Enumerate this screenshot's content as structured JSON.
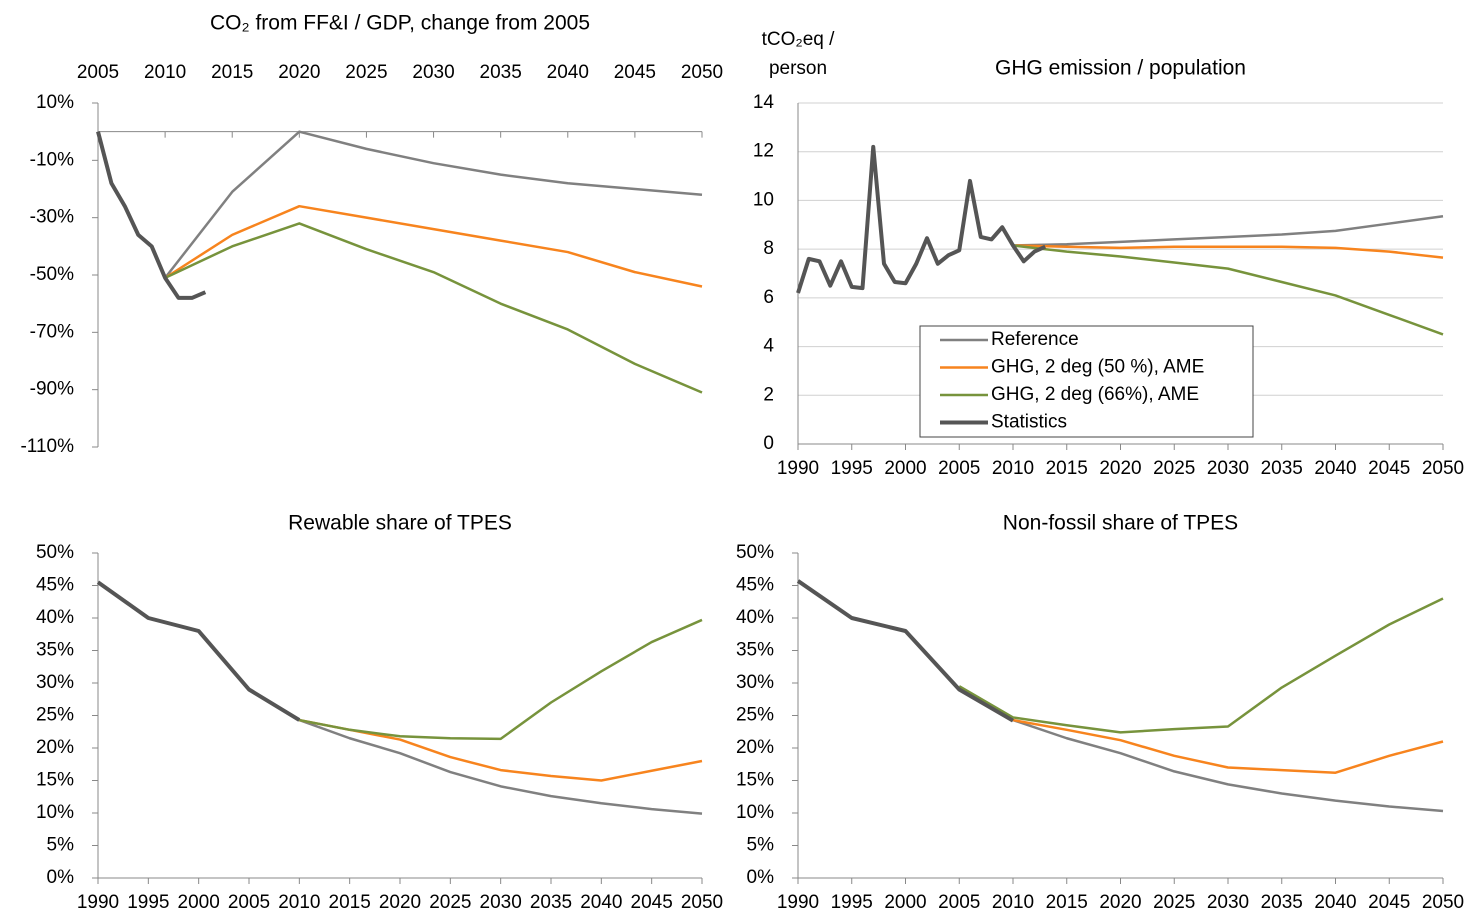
{
  "chart_data": [
    {
      "type": "line",
      "title": "CO₂ from FF&I / GDP, change from 2005",
      "x_axis_position": "top",
      "grid": false,
      "xlim": [
        2005,
        2050
      ],
      "xticks": [
        2005,
        2010,
        2015,
        2020,
        2025,
        2030,
        2035,
        2040,
        2045,
        2050
      ],
      "ylim": [
        -110,
        10
      ],
      "yticks": [
        {
          "value": -110,
          "label": "-110%"
        },
        {
          "value": -90,
          "label": "-90%"
        },
        {
          "value": -70,
          "label": "-70%"
        },
        {
          "value": -50,
          "label": "-50%"
        },
        {
          "value": -30,
          "label": "-30%"
        },
        {
          "value": -10,
          "label": "-10%"
        },
        {
          "value": 10,
          "label": "10%"
        }
      ],
      "series": [
        {
          "color": "#808080",
          "x": [
            2010,
            2015,
            2020,
            2025,
            2030,
            2035,
            2040,
            2045,
            2050
          ],
          "values": [
            -51,
            -21,
            0,
            -6,
            -11,
            -15,
            -18,
            -20,
            -22
          ]
        },
        {
          "color": "#f7841e",
          "x": [
            2010,
            2015,
            2020,
            2025,
            2030,
            2035,
            2040,
            2045,
            2050
          ],
          "values": [
            -51,
            -36,
            -26,
            -30,
            -34,
            -38,
            -42,
            -49,
            -54
          ]
        },
        {
          "color": "#77933c",
          "x": [
            2010,
            2015,
            2020,
            2025,
            2030,
            2035,
            2040,
            2045,
            2050
          ],
          "values": [
            -51,
            -40,
            -32,
            -41,
            -49,
            -60,
            -69,
            -81,
            -91
          ]
        },
        {
          "color": "#555555",
          "width": 4,
          "x": [
            2005,
            2006,
            2007,
            2008,
            2009,
            2010,
            2011,
            2012,
            2013
          ],
          "values": [
            0,
            -18,
            -26,
            -36,
            -40,
            -51,
            -58,
            -58,
            -56
          ]
        }
      ]
    },
    {
      "type": "line",
      "title": "GHG emission / population",
      "y_label": [
        "tCO₂eq /",
        "person"
      ],
      "grid": true,
      "legend": "center",
      "xlim": [
        1990,
        2050
      ],
      "xticks": [
        1990,
        1995,
        2000,
        2005,
        2010,
        2015,
        2020,
        2025,
        2030,
        2035,
        2040,
        2045,
        2050
      ],
      "ylim": [
        0,
        14
      ],
      "yticks": [
        0,
        2,
        4,
        6,
        8,
        10,
        12,
        14
      ],
      "series": [
        {
          "name": "Reference",
          "color": "#808080",
          "x": [
            2010,
            2015,
            2020,
            2025,
            2030,
            2035,
            2040,
            2045,
            2050
          ],
          "values": [
            8.15,
            8.2,
            8.3,
            8.4,
            8.5,
            8.6,
            8.75,
            9.05,
            9.35
          ]
        },
        {
          "name": "GHG, 2 deg (50 %), AME",
          "color": "#f7841e",
          "x": [
            2010,
            2015,
            2020,
            2025,
            2030,
            2035,
            2040,
            2045,
            2050
          ],
          "values": [
            8.15,
            8.1,
            8.05,
            8.1,
            8.1,
            8.1,
            8.05,
            7.9,
            7.65
          ]
        },
        {
          "name": "GHG, 2 deg (66%), AME",
          "color": "#77933c",
          "x": [
            2010,
            2015,
            2020,
            2025,
            2030,
            2035,
            2040,
            2045,
            2050
          ],
          "values": [
            8.15,
            7.9,
            7.7,
            7.45,
            7.2,
            6.65,
            6.1,
            5.3,
            4.5
          ]
        },
        {
          "name": "Statistics",
          "color": "#555555",
          "width": 4,
          "x": [
            1990,
            1991,
            1992,
            1993,
            1994,
            1995,
            1996,
            1997,
            1998,
            1999,
            2000,
            2001,
            2002,
            2003,
            2004,
            2005,
            2006,
            2007,
            2008,
            2009,
            2010,
            2011,
            2012,
            2013
          ],
          "values": [
            6.2,
            7.6,
            7.5,
            6.5,
            7.5,
            6.45,
            6.4,
            12.2,
            7.4,
            6.65,
            6.6,
            7.4,
            8.45,
            7.4,
            7.75,
            7.95,
            10.8,
            8.5,
            8.4,
            8.9,
            8.15,
            7.5,
            7.9,
            8.1
          ]
        }
      ]
    },
    {
      "type": "line",
      "title": "Rewable share of TPES",
      "grid": false,
      "xlim": [
        1990,
        2050
      ],
      "xticks": [
        1990,
        1995,
        2000,
        2005,
        2010,
        2015,
        2020,
        2025,
        2030,
        2035,
        2040,
        2045,
        2050
      ],
      "ylim": [
        0,
        50
      ],
      "yticks": [
        {
          "value": 0,
          "label": "0%"
        },
        {
          "value": 5,
          "label": "5%"
        },
        {
          "value": 10,
          "label": "10%"
        },
        {
          "value": 15,
          "label": "15%"
        },
        {
          "value": 20,
          "label": "20%"
        },
        {
          "value": 25,
          "label": "25%"
        },
        {
          "value": 30,
          "label": "30%"
        },
        {
          "value": 35,
          "label": "35%"
        },
        {
          "value": 40,
          "label": "40%"
        },
        {
          "value": 45,
          "label": "45%"
        },
        {
          "value": 50,
          "label": "50%"
        }
      ],
      "series": [
        {
          "color": "#808080",
          "x": [
            2010,
            2015,
            2020,
            2025,
            2030,
            2035,
            2040,
            2045,
            2050
          ],
          "values": [
            24.3,
            21.5,
            19.2,
            16.3,
            14.1,
            12.6,
            11.5,
            10.6,
            9.9
          ]
        },
        {
          "color": "#f7841e",
          "x": [
            2010,
            2015,
            2020,
            2025,
            2030,
            2035,
            2040,
            2045,
            2050
          ],
          "values": [
            24.3,
            22.8,
            21.3,
            18.6,
            16.6,
            15.7,
            15,
            16.5,
            18
          ]
        },
        {
          "color": "#77933c",
          "x": [
            2010,
            2015,
            2020,
            2025,
            2030,
            2035,
            2040,
            2045,
            2050
          ],
          "values": [
            24.3,
            22.8,
            21.8,
            21.5,
            21.4,
            27,
            31.8,
            36.3,
            39.7
          ]
        },
        {
          "color": "#555555",
          "width": 4,
          "x": [
            1990,
            1995,
            2000,
            2005,
            2010
          ],
          "values": [
            45.5,
            40,
            38,
            29,
            24.3
          ]
        }
      ]
    },
    {
      "type": "line",
      "title": "Non-fossil share of TPES",
      "grid": false,
      "xlim": [
        1990,
        2050
      ],
      "xticks": [
        1990,
        1995,
        2000,
        2005,
        2010,
        2015,
        2020,
        2025,
        2030,
        2035,
        2040,
        2045,
        2050
      ],
      "ylim": [
        0,
        50
      ],
      "yticks": [
        {
          "value": 0,
          "label": "0%"
        },
        {
          "value": 5,
          "label": "5%"
        },
        {
          "value": 10,
          "label": "10%"
        },
        {
          "value": 15,
          "label": "15%"
        },
        {
          "value": 20,
          "label": "20%"
        },
        {
          "value": 25,
          "label": "25%"
        },
        {
          "value": 30,
          "label": "30%"
        },
        {
          "value": 35,
          "label": "35%"
        },
        {
          "value": 40,
          "label": "40%"
        },
        {
          "value": 45,
          "label": "45%"
        },
        {
          "value": 50,
          "label": "50%"
        }
      ],
      "series": [
        {
          "color": "#808080",
          "x": [
            2010,
            2015,
            2020,
            2025,
            2030,
            2035,
            2040,
            2045,
            2050
          ],
          "values": [
            24.3,
            21.5,
            19.2,
            16.4,
            14.4,
            13,
            11.9,
            11,
            10.3
          ]
        },
        {
          "color": "#f7841e",
          "x": [
            2010,
            2015,
            2020,
            2025,
            2030,
            2035,
            2040,
            2045,
            2050
          ],
          "values": [
            24.3,
            22.8,
            21.2,
            18.8,
            17,
            16.6,
            16.2,
            18.8,
            21
          ]
        },
        {
          "color": "#77933c",
          "x": [
            2005,
            2010,
            2015,
            2020,
            2025,
            2030,
            2035,
            2040,
            2045,
            2050
          ],
          "values": [
            29.5,
            24.7,
            23.5,
            22.4,
            22.9,
            23.3,
            29.3,
            34.2,
            39,
            43
          ]
        },
        {
          "color": "#555555",
          "width": 4,
          "x": [
            1990,
            1995,
            2000,
            2005,
            2010
          ],
          "values": [
            45.7,
            40,
            38,
            29,
            24.2
          ]
        }
      ]
    }
  ]
}
